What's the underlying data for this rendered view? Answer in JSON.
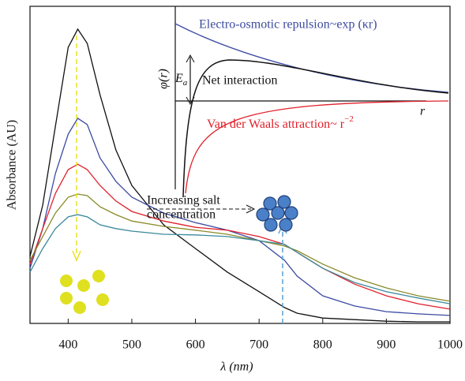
{
  "chart_data": {
    "type": "line",
    "x_label": "λ (nm)",
    "y_label": "Absorbance (AU)",
    "xlim": [
      340,
      1000
    ],
    "xticks": [
      400,
      500,
      600,
      700,
      800,
      900,
      1000
    ],
    "ylim": [
      0,
      100
    ],
    "x": [
      340,
      360,
      380,
      400,
      415,
      430,
      450,
      475,
      500,
      550,
      600,
      650,
      700,
      740,
      760,
      800,
      850,
      900,
      950,
      1000
    ],
    "series": [
      {
        "color": "#111111",
        "values": [
          21.1,
          37.3,
          62.2,
          87.1,
          92.8,
          88.3,
          72.1,
          54.7,
          43.5,
          31.1,
          23.6,
          16.2,
          10.0,
          5.0,
          3.2,
          1.7,
          1.2,
          0.7,
          0.5,
          0.5
        ]
      },
      {
        "color": "#3b4aa0",
        "values": [
          17.4,
          29.9,
          47.3,
          59.7,
          64.7,
          62.7,
          52.2,
          44.8,
          39.8,
          34.8,
          31.8,
          29.4,
          26.1,
          19.9,
          14.9,
          8.7,
          5.5,
          3.7,
          3.0,
          2.5
        ]
      },
      {
        "color": "#e0202a",
        "values": [
          18.7,
          29.9,
          41.0,
          48.5,
          50.2,
          48.5,
          43.5,
          38.6,
          35.3,
          32.3,
          30.3,
          29.4,
          27.4,
          24.9,
          22.4,
          17.4,
          12.4,
          8.7,
          6.2,
          4.5
        ]
      },
      {
        "color": "#8a8a2a",
        "values": [
          19.9,
          27.4,
          34.8,
          39.8,
          40.8,
          40.3,
          36.8,
          34.3,
          32.3,
          30.6,
          29.4,
          28.1,
          26.1,
          24.4,
          22.9,
          18.7,
          14.4,
          11.2,
          8.7,
          7.0
        ]
      },
      {
        "color": "#3a8a9a",
        "values": [
          16.2,
          23.6,
          29.9,
          33.6,
          34.3,
          33.6,
          31.1,
          29.9,
          29.1,
          28.1,
          27.9,
          27.4,
          26.1,
          24.9,
          22.4,
          17.4,
          12.9,
          10.0,
          8.0,
          6.2
        ]
      }
    ],
    "annotations": [
      "Increasing salt",
      "concentration"
    ],
    "inset": {
      "repulsion_label": "Electro-osmotic repulsion~exp (κr)",
      "y_label": "φ(r)",
      "barrier_label": "E",
      "barrier_sub": "a",
      "net_label": "Net interaction",
      "x_label": "r",
      "attraction_label": "Van der Waals attraction~ r",
      "attraction_sup": "−2"
    }
  }
}
